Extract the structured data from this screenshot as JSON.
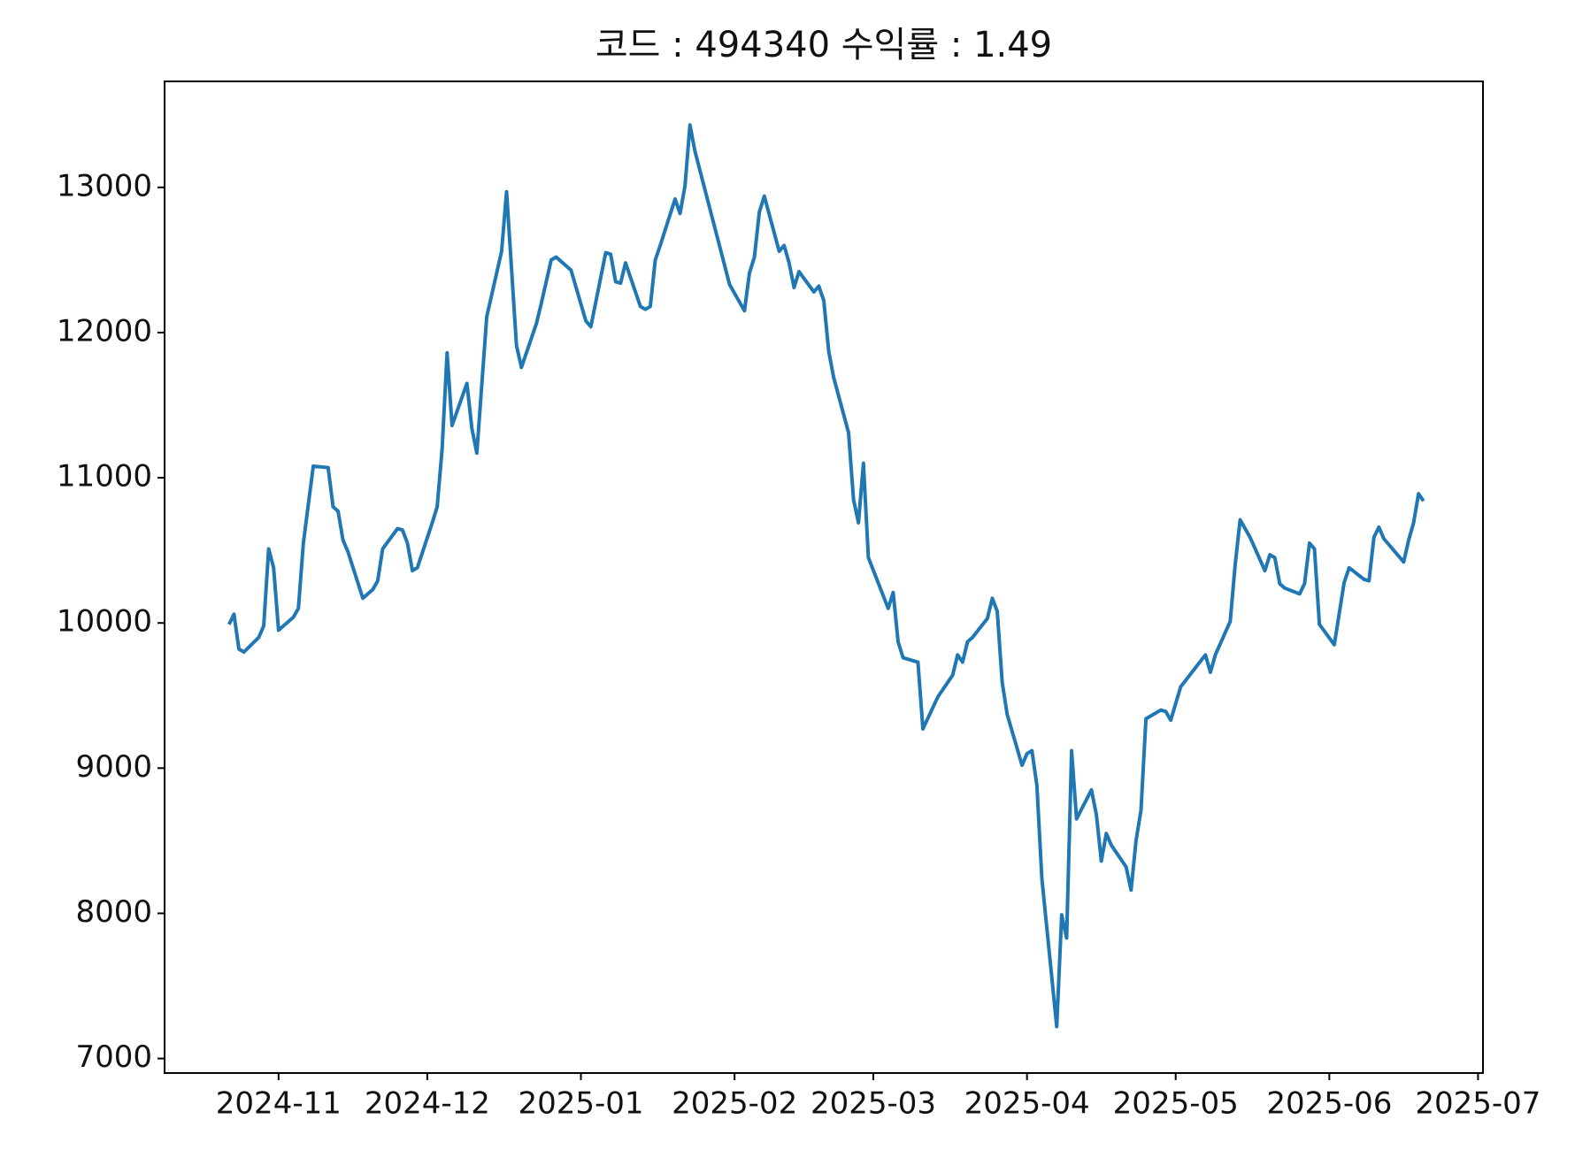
{
  "chart_data": {
    "type": "line",
    "title": "코드 : 494340 수익률 : 1.49",
    "color": "#1f77b4",
    "x": [
      20018,
      20019,
      20020,
      20021,
      20024,
      20025,
      20026,
      20027,
      20028,
      20031,
      20032,
      20033,
      20035,
      20038,
      20039,
      20040,
      20041,
      20042,
      20045,
      20046,
      20047,
      20048,
      20049,
      20052,
      20053,
      20054,
      20055,
      20056,
      20059,
      20060,
      20061,
      20062,
      20063,
      20066,
      20067,
      20068,
      20070,
      20073,
      20074,
      20076,
      20077,
      20080,
      20081,
      20083,
      20084,
      20087,
      20090,
      20091,
      20094,
      20095,
      20096,
      20097,
      20098,
      20101,
      20102,
      20103,
      20104,
      20105,
      20108,
      20109,
      20110,
      20111,
      20112,
      20119,
      20122,
      20123,
      20124,
      20125,
      20126,
      20129,
      20130,
      20131,
      20132,
      20133,
      20136,
      20137,
      20138,
      20139,
      20140,
      20143,
      20144,
      20145,
      20146,
      20147,
      20151,
      20152,
      20153,
      20154,
      20157,
      20158,
      20161,
      20164,
      20165,
      20166,
      20167,
      20168,
      20171,
      20172,
      20173,
      20174,
      20175,
      20178,
      20179,
      20180,
      20181,
      20182,
      20185,
      20186,
      20187,
      20188,
      20189,
      20192,
      20193,
      20194,
      20195,
      20196,
      20199,
      20200,
      20201,
      20202,
      20203,
      20206,
      20207,
      20208,
      20210,
      20215,
      20216,
      20217,
      20220,
      20221,
      20222,
      20223,
      20224,
      20227,
      20228,
      20229,
      20230,
      20231,
      20234,
      20235,
      20236,
      20237,
      20238,
      20241,
      20243,
      20244,
      20247,
      20248,
      20249,
      20250,
      20251,
      20255,
      20256,
      20257,
      20258,
      20259
    ],
    "values": [
      9990,
      10060,
      9820,
      9800,
      9900,
      9980,
      10510,
      10380,
      9950,
      10040,
      10100,
      10550,
      11080,
      11070,
      10800,
      10770,
      10570,
      10490,
      10170,
      10200,
      10230,
      10290,
      10510,
      10650,
      10640,
      10550,
      10360,
      10380,
      10690,
      10800,
      11200,
      11860,
      11360,
      11650,
      11340,
      11170,
      12110,
      12560,
      12970,
      11910,
      11760,
      12060,
      12200,
      12500,
      12520,
      12430,
      12080,
      12040,
      12550,
      12540,
      12350,
      12340,
      12480,
      12180,
      12160,
      12180,
      12500,
      12600,
      12920,
      12820,
      13010,
      13430,
      13250,
      12330,
      12150,
      12410,
      12520,
      12830,
      12940,
      12560,
      12600,
      12480,
      12310,
      12420,
      12280,
      12320,
      12220,
      11870,
      11690,
      11310,
      10850,
      10690,
      11100,
      10450,
      10100,
      10210,
      9870,
      9760,
      9730,
      9270,
      9490,
      9640,
      9780,
      9730,
      9870,
      9900,
      10030,
      10170,
      10080,
      9590,
      9370,
      9020,
      9100,
      9120,
      8880,
      8240,
      7220,
      7990,
      7830,
      9120,
      8650,
      8850,
      8680,
      8360,
      8550,
      8470,
      8320,
      8160,
      8500,
      8710,
      9340,
      9400,
      9390,
      9330,
      9560,
      9780,
      9660,
      9780,
      10010,
      10400,
      10710,
      10650,
      10590,
      10360,
      10470,
      10450,
      10270,
      10240,
      10200,
      10270,
      10550,
      10510,
      9990,
      9850,
      10280,
      10380,
      10300,
      10290,
      10590,
      10660,
      10580,
      10420,
      10570,
      10690,
      10890,
      10840
    ],
    "xlim": [
      20005,
      20271
    ],
    "xticks": [
      {
        "value": 20028,
        "label": "2024-11"
      },
      {
        "value": 20058,
        "label": "2024-12"
      },
      {
        "value": 20089,
        "label": "2025-01"
      },
      {
        "value": 20120,
        "label": "2025-02"
      },
      {
        "value": 20148,
        "label": "2025-03"
      },
      {
        "value": 20179,
        "label": "2025-04"
      },
      {
        "value": 20209,
        "label": "2025-05"
      },
      {
        "value": 20240,
        "label": "2025-06"
      },
      {
        "value": 20270,
        "label": "2025-07"
      }
    ],
    "ylim": [
      6900,
      13730
    ],
    "yticks": [
      7000,
      8000,
      9000,
      10000,
      11000,
      12000,
      13000
    ]
  }
}
